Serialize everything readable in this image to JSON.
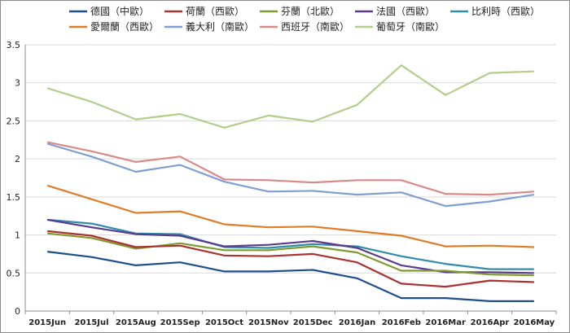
{
  "chart_data": {
    "type": "line",
    "categories": [
      "2015Jun",
      "2015Jul",
      "2015Aug",
      "2015Sep",
      "2015Oct",
      "2015Nov",
      "2015Dec",
      "2016Jan",
      "2016Feb",
      "2016Mar",
      "2016Apr",
      "2016May"
    ],
    "ylim": [
      0,
      3.5
    ],
    "yticks": [
      "0",
      "0.5",
      "1",
      "1.5",
      "2",
      "2.5",
      "3",
      "3.5"
    ],
    "grid": "horizontal",
    "legend_position": "top",
    "series": [
      {
        "name": "德國（中歐）",
        "color": "#1F4E8C",
        "values": [
          0.78,
          0.71,
          0.6,
          0.64,
          0.52,
          0.52,
          0.54,
          0.43,
          0.17,
          0.17,
          0.13,
          0.13
        ]
      },
      {
        "name": "荷蘭（西歐）",
        "color": "#A93232",
        "values": [
          1.05,
          0.99,
          0.84,
          0.86,
          0.73,
          0.72,
          0.75,
          0.64,
          0.36,
          0.32,
          0.4,
          0.38
        ]
      },
      {
        "name": "芬蘭（北歐）",
        "color": "#7D9B2E",
        "values": [
          1.02,
          0.96,
          0.82,
          0.89,
          0.8,
          0.8,
          0.85,
          0.77,
          0.53,
          0.53,
          0.48,
          0.47
        ]
      },
      {
        "name": "法國（西歐）",
        "color": "#5B3A8E",
        "values": [
          1.2,
          1.1,
          1.01,
          0.99,
          0.85,
          0.87,
          0.92,
          0.83,
          0.6,
          0.51,
          0.51,
          0.5
        ]
      },
      {
        "name": "比利時（西歐）",
        "color": "#2E8DA8",
        "values": [
          1.2,
          1.15,
          1.02,
          1.01,
          0.84,
          0.83,
          0.88,
          0.85,
          0.72,
          0.62,
          0.55,
          0.55
        ]
      },
      {
        "name": "愛爾蘭（西歐）",
        "color": "#E07B28",
        "values": [
          1.65,
          1.47,
          1.29,
          1.31,
          1.14,
          1.1,
          1.11,
          1.05,
          0.99,
          0.85,
          0.86,
          0.84
        ]
      },
      {
        "name": "義大利（南歐）",
        "color": "#7E9FD0",
        "values": [
          2.2,
          2.03,
          1.83,
          1.92,
          1.7,
          1.57,
          1.58,
          1.53,
          1.56,
          1.38,
          1.44,
          1.53
        ]
      },
      {
        "name": "西班牙（南歐）",
        "color": "#D88A88",
        "values": [
          2.22,
          2.1,
          1.96,
          2.03,
          1.73,
          1.72,
          1.69,
          1.72,
          1.72,
          1.54,
          1.53,
          1.57
        ]
      },
      {
        "name": "葡萄牙（南歐）",
        "color": "#B3CE8A",
        "values": [
          2.93,
          2.75,
          2.52,
          2.59,
          2.41,
          2.57,
          2.49,
          2.71,
          3.23,
          2.84,
          3.13,
          3.15
        ]
      }
    ]
  }
}
